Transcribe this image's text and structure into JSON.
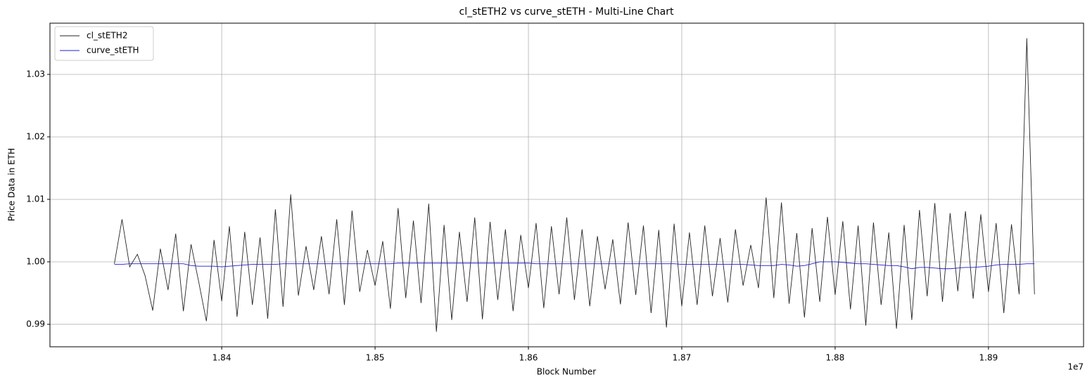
{
  "chart_data": {
    "type": "line",
    "title": "cl_stETH2 vs curve_stETH - Multi-Line Chart",
    "x_label": "Block Number",
    "y_label": "Price Data in ETH",
    "x_offset_label": "1e7",
    "x": [
      18330000,
      18335000,
      18340000,
      18345000,
      18350000,
      18355000,
      18360000,
      18365000,
      18370000,
      18375000,
      18380000,
      18385000,
      18390000,
      18395000,
      18400000,
      18405000,
      18410000,
      18415000,
      18420000,
      18425000,
      18430000,
      18435000,
      18440000,
      18445000,
      18450000,
      18455000,
      18460000,
      18465000,
      18470000,
      18475000,
      18480000,
      18485000,
      18490000,
      18495000,
      18500000,
      18505000,
      18510000,
      18515000,
      18520000,
      18525000,
      18530000,
      18535000,
      18540000,
      18545000,
      18550000,
      18555000,
      18560000,
      18565000,
      18570000,
      18575000,
      18580000,
      18585000,
      18590000,
      18595000,
      18600000,
      18605000,
      18610000,
      18615000,
      18620000,
      18625000,
      18630000,
      18635000,
      18640000,
      18645000,
      18650000,
      18655000,
      18660000,
      18665000,
      18670000,
      18675000,
      18680000,
      18685000,
      18690000,
      18695000,
      18700000,
      18705000,
      18710000,
      18715000,
      18720000,
      18725000,
      18730000,
      18735000,
      18740000,
      18745000,
      18750000,
      18755000,
      18760000,
      18765000,
      18770000,
      18775000,
      18780000,
      18785000,
      18790000,
      18795000,
      18800000,
      18805000,
      18810000,
      18815000,
      18820000,
      18825000,
      18830000,
      18835000,
      18840000,
      18845000,
      18850000,
      18855000,
      18860000,
      18865000,
      18870000,
      18875000,
      18880000,
      18885000,
      18890000,
      18895000,
      18900000,
      18905000,
      18910000,
      18915000,
      18920000,
      18925000,
      18930000
    ],
    "series": [
      {
        "name": "cl_stETH2",
        "color": "#262626",
        "values": [
          0.9997,
          1.0068,
          0.9992,
          1.0012,
          0.9978,
          0.9922,
          1.0021,
          0.9955,
          1.0045,
          0.9921,
          1.0028,
          0.9968,
          0.9905,
          1.0035,
          0.9937,
          1.0057,
          0.9912,
          1.0048,
          0.9931,
          1.0039,
          0.9909,
          1.0084,
          0.9928,
          1.0108,
          0.9946,
          1.0025,
          0.9955,
          1.0041,
          0.9948,
          1.0068,
          0.9931,
          1.0082,
          0.9952,
          1.0019,
          0.9962,
          1.0033,
          0.9925,
          1.0086,
          0.9942,
          1.0066,
          0.9934,
          1.0093,
          0.9888,
          1.0059,
          0.9907,
          1.0048,
          0.9936,
          1.0071,
          0.9908,
          1.0064,
          0.9939,
          1.0052,
          0.9921,
          1.0043,
          0.9958,
          1.0062,
          0.9926,
          1.0057,
          0.9948,
          1.0071,
          0.9939,
          1.0052,
          0.9929,
          1.0041,
          0.9956,
          1.0036,
          0.9932,
          1.0063,
          0.9947,
          1.0058,
          0.9918,
          1.0051,
          0.9895,
          1.0061,
          0.9929,
          1.0047,
          0.9931,
          1.0058,
          0.9945,
          1.0038,
          0.9935,
          1.0052,
          0.9962,
          1.0027,
          0.9958,
          1.0103,
          0.9942,
          1.0095,
          0.9933,
          1.0046,
          0.9911,
          1.0054,
          0.9936,
          1.0072,
          0.9947,
          1.0065,
          0.9924,
          1.0058,
          0.9898,
          1.0063,
          0.9931,
          1.0047,
          0.9893,
          1.0059,
          0.9907,
          1.0083,
          0.9945,
          1.0094,
          0.9936,
          1.0078,
          0.9953,
          1.0081,
          0.9941,
          1.0076,
          0.9952,
          1.0062,
          0.9918,
          1.006,
          0.9948,
          1.0358,
          0.9948
        ]
      },
      {
        "name": "curve_stETH",
        "color": "#1f1fd6",
        "values": [
          0.9996,
          0.9996,
          0.9997,
          0.9997,
          0.9997,
          0.9997,
          0.9997,
          0.9997,
          0.9997,
          0.9997,
          0.9994,
          0.9993,
          0.9993,
          0.9993,
          0.9992,
          0.9993,
          0.9994,
          0.9995,
          0.9996,
          0.9996,
          0.9996,
          0.9996,
          0.9997,
          0.9997,
          0.9997,
          0.9997,
          0.9997,
          0.9997,
          0.9997,
          0.9997,
          0.9997,
          0.9997,
          0.9997,
          0.9997,
          0.9997,
          0.9997,
          0.9997,
          0.9998,
          0.9998,
          0.9998,
          0.9998,
          0.9998,
          0.9998,
          0.9998,
          0.9998,
          0.9998,
          0.9998,
          0.9998,
          0.9998,
          0.9998,
          0.9998,
          0.9998,
          0.9998,
          0.9998,
          0.9998,
          0.9997,
          0.9997,
          0.9997,
          0.9997,
          0.9997,
          0.9997,
          0.9997,
          0.9997,
          0.9997,
          0.9997,
          0.9997,
          0.9997,
          0.9997,
          0.9997,
          0.9997,
          0.9997,
          0.9997,
          0.9997,
          0.9997,
          0.9996,
          0.9996,
          0.9996,
          0.9996,
          0.9996,
          0.9996,
          0.9996,
          0.9996,
          0.9996,
          0.9995,
          0.9994,
          0.9994,
          0.9994,
          0.9996,
          0.9995,
          0.9993,
          0.9994,
          0.9997,
          1.0,
          1.0,
          1.0,
          0.9999,
          0.9998,
          0.9997,
          0.9997,
          0.9996,
          0.9995,
          0.9994,
          0.9994,
          0.9992,
          0.9989,
          0.9991,
          0.9991,
          0.999,
          0.9989,
          0.9989,
          0.999,
          0.9991,
          0.9991,
          0.9992,
          0.9993,
          0.9995,
          0.9996,
          0.9996,
          0.9996,
          0.9997,
          0.9997
        ]
      }
    ],
    "xlim": [
      18288000,
      18962000
    ],
    "ylim": [
      0.9864,
      1.0382
    ],
    "xticks": [
      {
        "value": 18400000,
        "label": "1.84"
      },
      {
        "value": 18500000,
        "label": "1.85"
      },
      {
        "value": 18600000,
        "label": "1.86"
      },
      {
        "value": 18700000,
        "label": "1.87"
      },
      {
        "value": 18800000,
        "label": "1.88"
      },
      {
        "value": 18900000,
        "label": "1.89"
      }
    ],
    "yticks": [
      0.99,
      {
        "value": 1,
        "label": "1.00"
      },
      1.01,
      1.02,
      1.03
    ],
    "grid": true,
    "legend": "upper-left"
  }
}
